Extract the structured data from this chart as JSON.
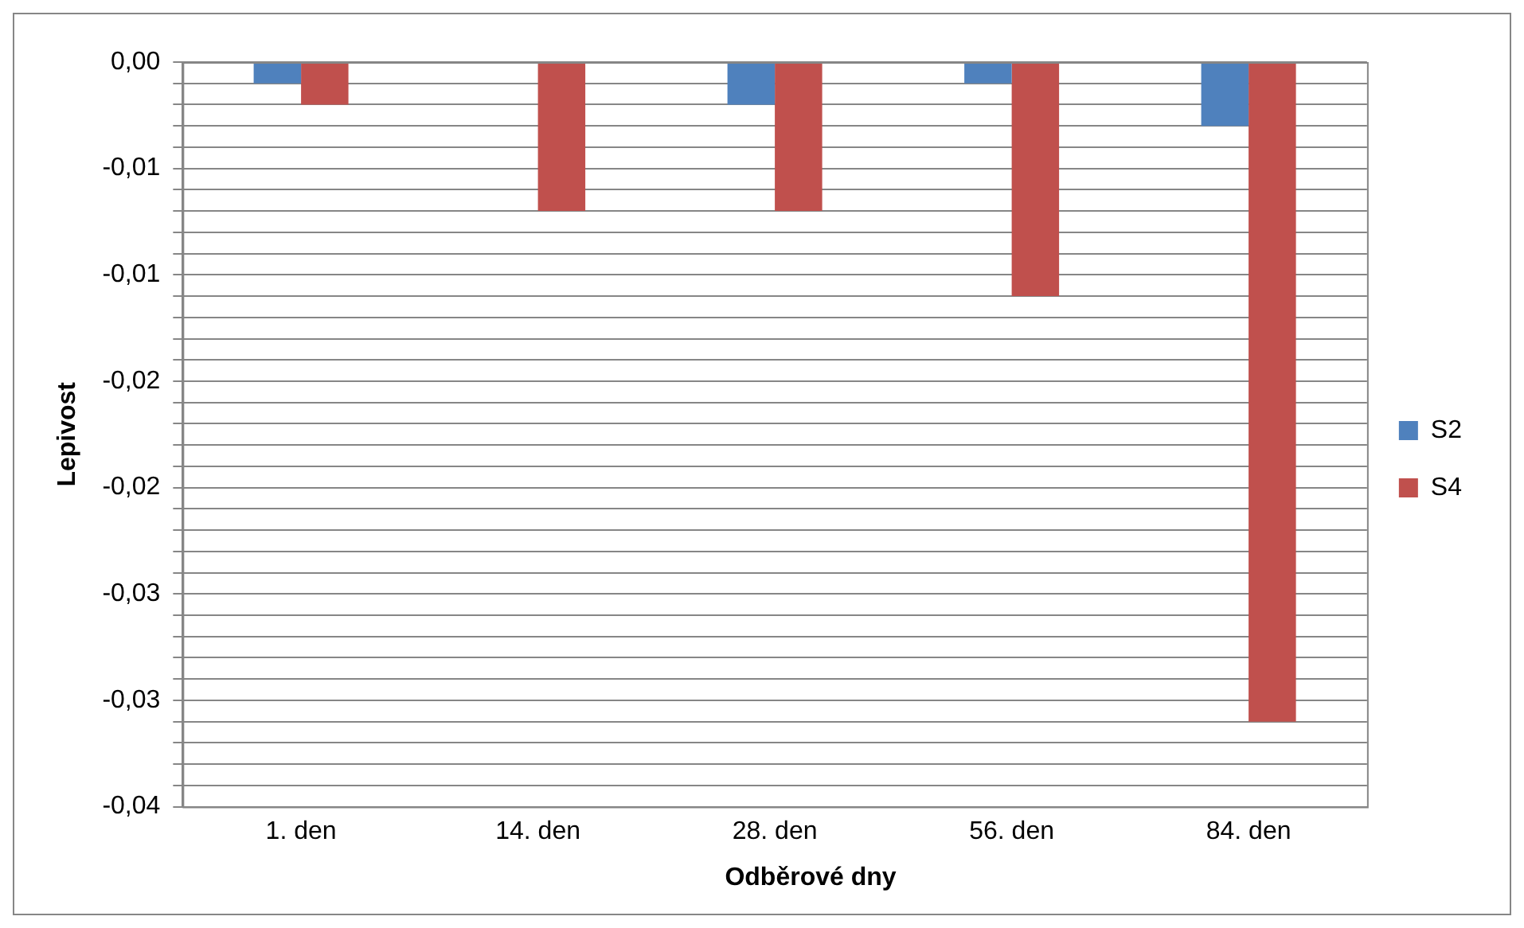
{
  "chart_data": {
    "type": "bar",
    "xlabel": "Odběrové dny",
    "ylabel": "Lepivost",
    "categories": [
      "1. den",
      "14. den",
      "28. den",
      "56. den",
      "84. den"
    ],
    "series": [
      {
        "name": "S2",
        "color": "#4f81bd",
        "values": [
          -0.001,
          0,
          -0.002,
          -0.001,
          -0.003
        ]
      },
      {
        "name": "S4",
        "color": "#c0504d",
        "values": [
          -0.002,
          -0.007,
          -0.007,
          -0.011,
          -0.031
        ]
      }
    ],
    "ylim": [
      -0.035,
      0
    ],
    "yticks": [
      {
        "value": 0,
        "label": "0,00"
      },
      {
        "value": -0.001,
        "label": null
      },
      {
        "value": -0.002,
        "label": null
      },
      {
        "value": -0.003,
        "label": null
      },
      {
        "value": -0.004,
        "label": null
      },
      {
        "value": -0.005,
        "label": "-0,01"
      },
      {
        "value": -0.006,
        "label": null
      },
      {
        "value": -0.007,
        "label": null
      },
      {
        "value": -0.008,
        "label": null
      },
      {
        "value": -0.009,
        "label": null
      },
      {
        "value": -0.01,
        "label": "-0,01"
      },
      {
        "value": -0.011,
        "label": null
      },
      {
        "value": -0.012,
        "label": null
      },
      {
        "value": -0.013,
        "label": null
      },
      {
        "value": -0.014,
        "label": null
      },
      {
        "value": -0.015,
        "label": "-0,02"
      },
      {
        "value": -0.016,
        "label": null
      },
      {
        "value": -0.017,
        "label": null
      },
      {
        "value": -0.018,
        "label": null
      },
      {
        "value": -0.019,
        "label": null
      },
      {
        "value": -0.02,
        "label": "-0,02"
      },
      {
        "value": -0.021,
        "label": null
      },
      {
        "value": -0.022,
        "label": null
      },
      {
        "value": -0.023,
        "label": null
      },
      {
        "value": -0.024,
        "label": null
      },
      {
        "value": -0.025,
        "label": "-0,03"
      },
      {
        "value": -0.026,
        "label": null
      },
      {
        "value": -0.027,
        "label": null
      },
      {
        "value": -0.028,
        "label": null
      },
      {
        "value": -0.029,
        "label": null
      },
      {
        "value": -0.03,
        "label": "-0,03"
      },
      {
        "value": -0.031,
        "label": null
      },
      {
        "value": -0.032,
        "label": null
      },
      {
        "value": -0.033,
        "label": null
      },
      {
        "value": -0.034,
        "label": null
      },
      {
        "value": -0.035,
        "label": "-0,04"
      }
    ],
    "grid": "y",
    "legend": "right"
  }
}
